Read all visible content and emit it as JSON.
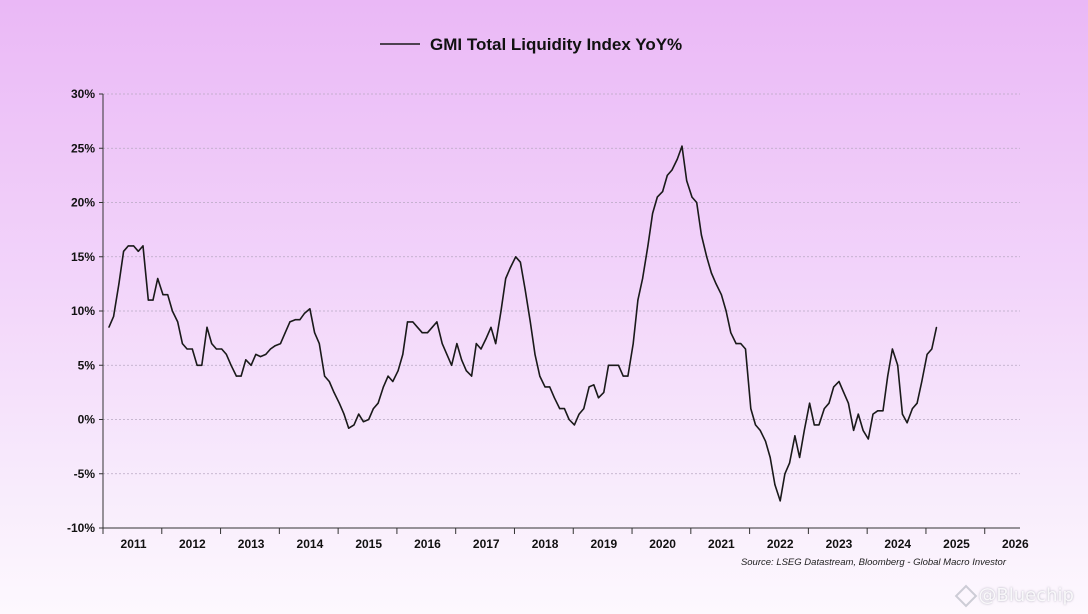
{
  "chart_data": {
    "type": "line",
    "legend": [
      "GMI Total Liquidity Index YoY%"
    ],
    "source": "Source: LSEG Datastream, Bloomberg - Global Macro Investor",
    "y_ticks": [
      "30%",
      "25%",
      "20%",
      "15%",
      "10%",
      "5%",
      "0%",
      "-5%",
      "-10%"
    ],
    "y_tick_values": [
      30,
      25,
      20,
      15,
      10,
      5,
      0,
      -5,
      -10
    ],
    "x_ticks": [
      "2011",
      "2012",
      "2013",
      "2014",
      "2015",
      "2016",
      "2017",
      "2018",
      "2019",
      "2020",
      "2021",
      "2022",
      "2023",
      "2024",
      "2025",
      "2026"
    ],
    "xlim": [
      2010.9,
      2026.5
    ],
    "ylim": [
      -10,
      30
    ],
    "grid": true,
    "legend_position": "top-center",
    "series": [
      {
        "color": "#1a1a1a",
        "x": [
          2011.0,
          2011.08,
          2011.17,
          2011.25,
          2011.33,
          2011.42,
          2011.5,
          2011.58,
          2011.67,
          2011.75,
          2011.83,
          2011.92,
          2012.0,
          2012.08,
          2012.17,
          2012.25,
          2012.33,
          2012.42,
          2012.5,
          2012.58,
          2012.67,
          2012.75,
          2012.83,
          2012.92,
          2013.0,
          2013.08,
          2013.17,
          2013.25,
          2013.33,
          2013.42,
          2013.5,
          2013.58,
          2013.67,
          2013.75,
          2013.83,
          2013.92,
          2014.0,
          2014.08,
          2014.17,
          2014.25,
          2014.33,
          2014.42,
          2014.5,
          2014.58,
          2014.67,
          2014.75,
          2014.83,
          2014.92,
          2015.0,
          2015.08,
          2015.17,
          2015.25,
          2015.33,
          2015.42,
          2015.5,
          2015.58,
          2015.67,
          2015.75,
          2015.83,
          2015.92,
          2016.0,
          2016.08,
          2016.17,
          2016.25,
          2016.33,
          2016.42,
          2016.5,
          2016.58,
          2016.67,
          2016.75,
          2016.83,
          2016.92,
          2017.0,
          2017.08,
          2017.17,
          2017.25,
          2017.33,
          2017.42,
          2017.5,
          2017.58,
          2017.67,
          2017.75,
          2017.83,
          2017.92,
          2018.0,
          2018.08,
          2018.17,
          2018.25,
          2018.33,
          2018.42,
          2018.5,
          2018.58,
          2018.67,
          2018.75,
          2018.83,
          2018.92,
          2019.0,
          2019.08,
          2019.17,
          2019.25,
          2019.33,
          2019.42,
          2019.5,
          2019.58,
          2019.67,
          2019.75,
          2019.83,
          2019.92,
          2020.0,
          2020.08,
          2020.17,
          2020.25,
          2020.33,
          2020.42,
          2020.5,
          2020.58,
          2020.67,
          2020.75,
          2020.83,
          2020.92,
          2021.0,
          2021.08,
          2021.17,
          2021.25,
          2021.33,
          2021.42,
          2021.5,
          2021.58,
          2021.67,
          2021.75,
          2021.83,
          2021.92,
          2022.0,
          2022.08,
          2022.17,
          2022.25,
          2022.33,
          2022.42,
          2022.5,
          2022.58,
          2022.67,
          2022.75,
          2022.83,
          2022.92,
          2023.0,
          2023.08,
          2023.17,
          2023.25,
          2023.33,
          2023.42,
          2023.5,
          2023.58,
          2023.67,
          2023.75,
          2023.83,
          2023.92,
          2024.0,
          2024.08,
          2024.17,
          2024.25,
          2024.33,
          2024.42,
          2024.5,
          2024.58,
          2024.67,
          2024.75,
          2024.83,
          2024.92,
          2025.0,
          2025.08
        ],
        "y": [
          8.5,
          9.5,
          12.5,
          15.5,
          16.0,
          16.0,
          15.5,
          16.0,
          11.0,
          11.0,
          13.0,
          11.5,
          11.5,
          10.0,
          9.0,
          7.0,
          6.5,
          6.5,
          5.0,
          5.0,
          8.5,
          7.0,
          6.5,
          6.5,
          6.0,
          5.0,
          4.0,
          4.0,
          5.5,
          5.0,
          6.0,
          5.8,
          6.0,
          6.5,
          6.8,
          7.0,
          8.0,
          9.0,
          9.2,
          9.2,
          9.8,
          10.2,
          8.0,
          7.0,
          4.0,
          3.5,
          2.5,
          1.5,
          0.5,
          -0.8,
          -0.5,
          0.5,
          -0.2,
          0.0,
          1.0,
          1.5,
          3.0,
          4.0,
          3.5,
          4.5,
          6.0,
          9.0,
          9.0,
          8.5,
          8.0,
          8.0,
          8.5,
          9.0,
          7.0,
          6.0,
          5.0,
          7.0,
          5.5,
          4.5,
          4.0,
          7.0,
          6.5,
          7.5,
          8.5,
          7.0,
          10.0,
          13.0,
          14.0,
          15.0,
          14.5,
          12.0,
          9.0,
          6.0,
          4.0,
          3.0,
          3.0,
          2.0,
          1.0,
          1.0,
          0.0,
          -0.5,
          0.5,
          1.0,
          3.0,
          3.2,
          2.0,
          2.5,
          5.0,
          5.0,
          5.0,
          4.0,
          4.0,
          7.0,
          11.0,
          13.0,
          16.0,
          19.0,
          20.5,
          21.0,
          22.5,
          23.0,
          24.0,
          25.2,
          22.0,
          20.5,
          20.0,
          17.0,
          15.0,
          13.5,
          12.5,
          11.5,
          10.0,
          8.0,
          7.0,
          7.0,
          6.5,
          1.0,
          -0.5,
          -1.0,
          -2.0,
          -3.5,
          -6.0,
          -7.5,
          -5.0,
          -4.0,
          -1.5,
          -3.5,
          -1.0,
          1.5,
          -0.5,
          -0.5,
          1.0,
          1.5,
          3.0,
          3.5,
          2.5,
          1.5,
          -1.0,
          0.5,
          -1.0,
          -1.8,
          0.5,
          0.8,
          0.8,
          4.0,
          6.5,
          5.0,
          0.5,
          -0.3,
          1.0,
          1.5,
          3.5,
          6.0,
          6.5,
          8.5
        ]
      }
    ]
  },
  "watermark": "@Bluechip"
}
